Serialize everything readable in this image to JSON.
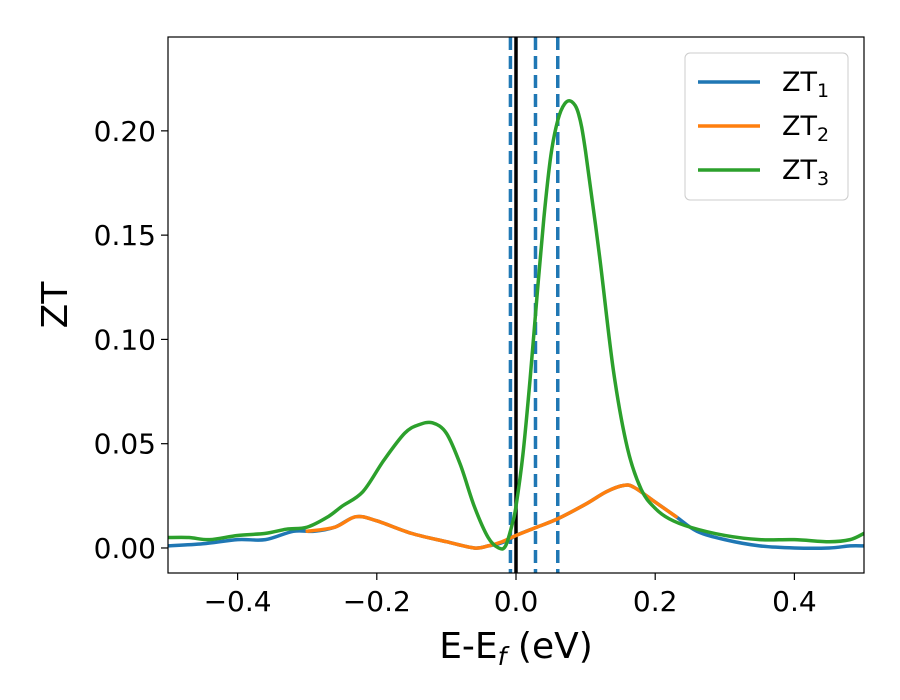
{
  "chart_data": {
    "type": "line",
    "title": "",
    "xlabel": "E-E",
    "xlabel_sub": "f",
    "xlabel_unit": " (eV)",
    "ylabel": "ZT",
    "xlim": [
      -0.5,
      0.5
    ],
    "ylim": [
      -0.012,
      0.245
    ],
    "xticks": [
      -0.4,
      -0.2,
      0.0,
      0.2,
      0.4
    ],
    "xtick_labels": [
      "−0.4",
      "−0.2",
      "0.0",
      "0.2",
      "0.4"
    ],
    "yticks": [
      0.0,
      0.05,
      0.1,
      0.15,
      0.2
    ],
    "ytick_labels": [
      "0.00",
      "0.05",
      "0.10",
      "0.15",
      "0.20"
    ],
    "grid": false,
    "legend_position": "top-right",
    "vlines": [
      {
        "x": 0.0,
        "style": "solid",
        "color": "#000000"
      },
      {
        "x": -0.008,
        "style": "dashed",
        "color": "#1f77b4"
      },
      {
        "x": 0.028,
        "style": "dashed",
        "color": "#1f77b4"
      },
      {
        "x": 0.06,
        "style": "dashed",
        "color": "#1f77b4"
      }
    ],
    "series": [
      {
        "base": "ZT",
        "sub": "1",
        "color": "#1f77b4",
        "x": [
          -0.5,
          -0.45,
          -0.4,
          -0.36,
          -0.32,
          -0.29,
          -0.26,
          -0.23,
          -0.2,
          -0.15,
          -0.1,
          -0.06,
          -0.04,
          -0.025,
          -0.01,
          0.0,
          0.03,
          0.06,
          0.1,
          0.13,
          0.155,
          0.17,
          0.2,
          0.23,
          0.26,
          0.3,
          0.35,
          0.4,
          0.45,
          0.48,
          0.5
        ],
        "y": [
          0.001,
          0.002,
          0.004,
          0.004,
          0.008,
          0.008,
          0.01,
          0.015,
          0.013,
          0.007,
          0.003,
          0.0,
          0.001,
          0.002,
          0.004,
          0.006,
          0.01,
          0.014,
          0.021,
          0.027,
          0.03,
          0.029,
          0.022,
          0.015,
          0.008,
          0.004,
          0.001,
          0.0,
          0.0,
          0.001,
          0.001
        ]
      },
      {
        "base": "ZT",
        "sub": "2",
        "color": "#ff7f0e",
        "x": [
          -0.3,
          -0.26,
          -0.23,
          -0.2,
          -0.15,
          -0.1,
          -0.06,
          -0.04,
          -0.02,
          0.0,
          0.03,
          0.06,
          0.1,
          0.13,
          0.155,
          0.17,
          0.2,
          0.23
        ],
        "y": [
          0.008,
          0.01,
          0.015,
          0.013,
          0.007,
          0.003,
          0.0,
          0.001,
          0.003,
          0.006,
          0.01,
          0.014,
          0.021,
          0.027,
          0.03,
          0.029,
          0.022,
          0.015
        ]
      },
      {
        "base": "ZT",
        "sub": "3",
        "color": "#2ca02c",
        "x": [
          -0.5,
          -0.47,
          -0.44,
          -0.4,
          -0.36,
          -0.33,
          -0.3,
          -0.27,
          -0.25,
          -0.22,
          -0.19,
          -0.16,
          -0.14,
          -0.12,
          -0.1,
          -0.08,
          -0.06,
          -0.04,
          -0.025,
          -0.015,
          -0.005,
          0.0,
          0.01,
          0.02,
          0.03,
          0.04,
          0.05,
          0.06,
          0.07,
          0.08,
          0.09,
          0.1,
          0.12,
          0.14,
          0.16,
          0.18,
          0.2,
          0.22,
          0.25,
          0.3,
          0.35,
          0.4,
          0.45,
          0.48,
          0.5
        ],
        "y": [
          0.005,
          0.005,
          0.004,
          0.006,
          0.007,
          0.009,
          0.01,
          0.015,
          0.02,
          0.027,
          0.042,
          0.055,
          0.059,
          0.06,
          0.055,
          0.04,
          0.02,
          0.005,
          0.0,
          0.001,
          0.012,
          0.02,
          0.045,
          0.08,
          0.12,
          0.158,
          0.188,
          0.205,
          0.213,
          0.214,
          0.208,
          0.19,
          0.14,
          0.085,
          0.048,
          0.028,
          0.019,
          0.014,
          0.01,
          0.006,
          0.004,
          0.004,
          0.003,
          0.004,
          0.007
        ]
      }
    ]
  }
}
